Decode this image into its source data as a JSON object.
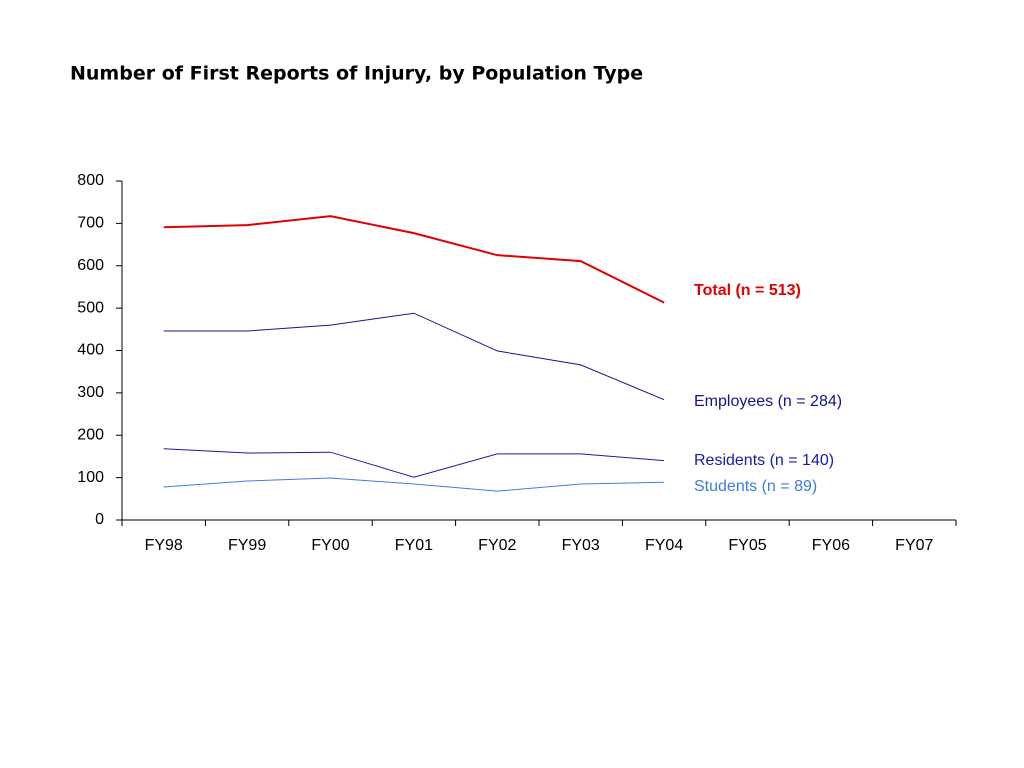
{
  "chart_data": {
    "type": "line",
    "title": "Number of First Reports of Injury, by Population Type",
    "categories": [
      "FY98",
      "FY99",
      "FY00",
      "FY01",
      "FY02",
      "FY03",
      "FY04",
      "FY05",
      "FY06",
      "FY07"
    ],
    "series": [
      {
        "name": "Total (n = 513)",
        "color": "#e00000",
        "values": [
          691,
          696,
          717,
          677,
          625,
          611,
          513,
          null,
          null,
          null
        ]
      },
      {
        "name": "Employees (n = 284)",
        "color": "#14148c",
        "values": [
          446,
          446,
          460,
          488,
          399,
          366,
          284,
          null,
          null,
          null
        ]
      },
      {
        "name": "Residents (n = 140)",
        "color": "#1a1aa8",
        "values": [
          168,
          158,
          160,
          101,
          156,
          156,
          140,
          null,
          null,
          null
        ]
      },
      {
        "name": "Students (n = 89)",
        "color": "#3c7ddc",
        "values": [
          78,
          92,
          99,
          85,
          68,
          85,
          89,
          null,
          null,
          null
        ]
      }
    ],
    "ylim": [
      0,
      800
    ],
    "yticks": [
      0,
      100,
      200,
      300,
      400,
      500,
      600,
      700,
      800
    ],
    "grid": false
  }
}
